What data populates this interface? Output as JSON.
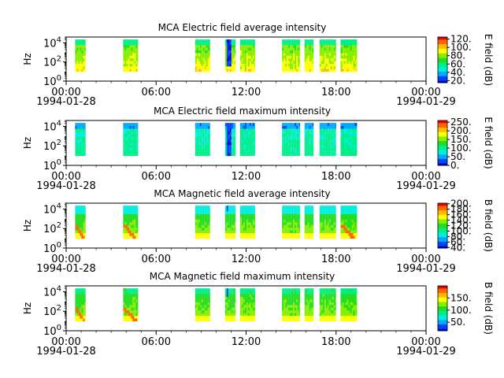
{
  "colormap": [
    "#0000d0",
    "#0044ff",
    "#00aaff",
    "#00eedd",
    "#00ee88",
    "#22dd22",
    "#88ee00",
    "#ffff00",
    "#ffbb00",
    "#ff6600",
    "#ee0000"
  ],
  "chart_data": [
    {
      "type": "heatmap",
      "title": "MCA  Electric field average intensity",
      "ylabel": "Hz",
      "y_ticks": [
        "10^0",
        "10^2",
        "10^4"
      ],
      "y_scale": "log",
      "ylim_hz": [
        1,
        40000
      ],
      "x_ticks": [
        "00:00\n1994-01-28",
        "06:00",
        "12:00",
        "18:00",
        "00:00\n1994-01-29"
      ],
      "x_range_hours": [
        0,
        24
      ],
      "colorbar": {
        "label": "E field (dB)",
        "ticks": [
          "20.",
          "40.",
          "60.",
          "80.",
          "100.",
          "120."
        ],
        "range": [
          15,
          125
        ]
      },
      "data_blocks_hours": [
        [
          0.6,
          1.3
        ],
        [
          3.8,
          4.8
        ],
        [
          8.6,
          9.6
        ],
        [
          10.6,
          11.3
        ],
        [
          11.6,
          12.6
        ],
        [
          14.4,
          15.6
        ],
        [
          15.9,
          16.5
        ],
        [
          16.9,
          18.0
        ],
        [
          18.3,
          19.4
        ]
      ],
      "pattern": "low frequencies hot (yellow/orange), mid green, upper band cyan; dark-blue spikes near 10.7 h"
    },
    {
      "type": "heatmap",
      "title": "MCA  Electric field maximum intensity",
      "ylabel": "Hz",
      "y_ticks": [
        "10^0",
        "10^2",
        "10^4"
      ],
      "y_scale": "log",
      "ylim_hz": [
        1,
        40000
      ],
      "x_ticks": [
        "00:00\n1994-01-28",
        "06:00",
        "12:00",
        "18:00",
        "00:00\n1994-01-29"
      ],
      "x_range_hours": [
        0,
        24
      ],
      "colorbar": {
        "label": "E field (dB)",
        "ticks": [
          "0.",
          "50.",
          "100.",
          "150.",
          "200.",
          "250."
        ],
        "range": [
          0,
          260
        ]
      },
      "data_blocks_hours": [
        [
          0.6,
          1.3
        ],
        [
          3.8,
          4.8
        ],
        [
          8.6,
          9.6
        ],
        [
          10.6,
          11.3
        ],
        [
          11.6,
          12.6
        ],
        [
          14.4,
          15.6
        ],
        [
          15.9,
          16.5
        ],
        [
          16.9,
          18.0
        ],
        [
          18.3,
          19.4
        ]
      ],
      "pattern": "mostly cyan/light-blue, blue top row, dark-blue column near 10.8 h"
    },
    {
      "type": "heatmap",
      "title": "MCA  Magnetic field average intensity",
      "ylabel": "Hz",
      "y_ticks": [
        "10^0",
        "10^2",
        "10^4"
      ],
      "y_scale": "log",
      "ylim_hz": [
        1,
        40000
      ],
      "x_ticks": [
        "00:00\n1994-01-28",
        "06:00",
        "12:00",
        "18:00",
        "00:00\n1994-01-29"
      ],
      "x_range_hours": [
        0,
        24
      ],
      "colorbar": {
        "label": "B field (dB)",
        "ticks": [
          "40.",
          "60.",
          "80.",
          "100.",
          "120.",
          "140.",
          "160.",
          "180.",
          "200."
        ],
        "range": [
          38,
          202
        ]
      },
      "data_blocks_hours": [
        [
          0.6,
          1.3
        ],
        [
          3.8,
          4.8
        ],
        [
          8.6,
          9.6
        ],
        [
          10.6,
          11.3
        ],
        [
          11.6,
          12.6
        ],
        [
          14.4,
          15.6
        ],
        [
          15.9,
          16.5
        ],
        [
          16.9,
          18.0
        ],
        [
          18.3,
          19.4
        ]
      ],
      "pattern": "upper band light blue, middle green, lower yellow; orange-red streaks descending at first two blocks and 18.5 h"
    },
    {
      "type": "heatmap",
      "title": "MCA  Magnetic field maximum intensity",
      "ylabel": "Hz",
      "y_ticks": [
        "10^0",
        "10^2",
        "10^4"
      ],
      "y_scale": "log",
      "ylim_hz": [
        1,
        40000
      ],
      "x_ticks": [
        "00:00\n1994-01-28",
        "06:00",
        "12:00",
        "18:00",
        "00:00\n1994-01-29"
      ],
      "x_range_hours": [
        0,
        24
      ],
      "colorbar": {
        "label": "B field (dB)",
        "ticks": [
          "50.",
          "100.",
          "150."
        ],
        "range": [
          15,
          200
        ]
      },
      "data_blocks_hours": [
        [
          0.6,
          1.3
        ],
        [
          3.8,
          4.8
        ],
        [
          8.6,
          9.6
        ],
        [
          10.6,
          11.3
        ],
        [
          11.6,
          12.6
        ],
        [
          14.4,
          15.6
        ],
        [
          15.9,
          16.5
        ],
        [
          16.9,
          18.0
        ],
        [
          18.3,
          19.4
        ]
      ],
      "pattern": "upper band cyan/green, middle green, low frequencies yellow; red-orange lines at first blocks"
    }
  ]
}
